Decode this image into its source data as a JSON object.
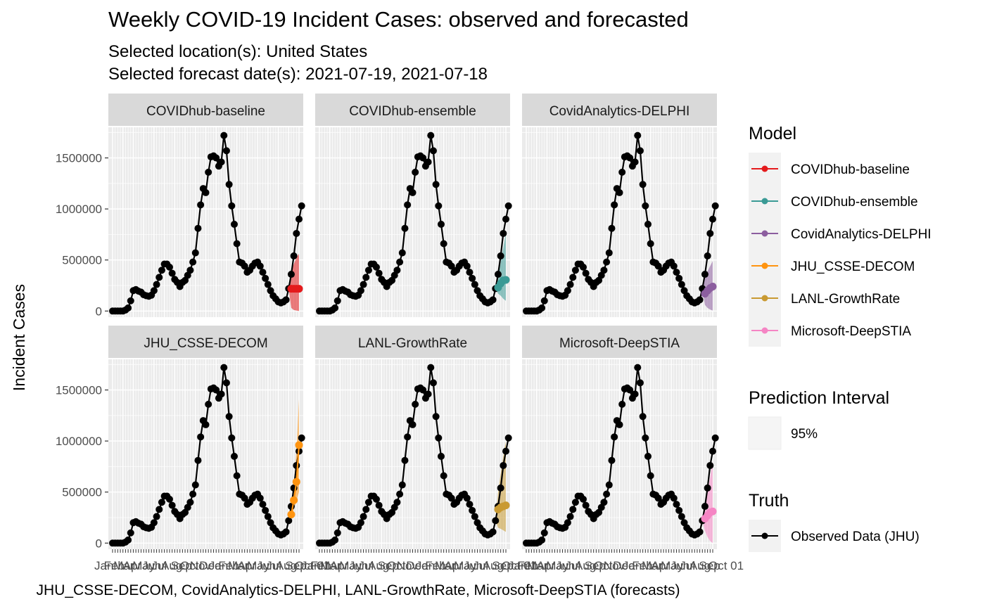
{
  "title": "Weekly COVID-19 Incident Cases: observed and forecasted",
  "subtitle": [
    "Selected location(s): United States",
    "Selected forecast date(s): 2021-07-19, 2021-07-18"
  ],
  "chart_data": {
    "type": "line",
    "title": "Weekly COVID-19 Incident Cases: observed and forecasted",
    "ylabel": "Incident Cases",
    "xlabel": "JHU_CSSE-DECOM, CovidAnalytics-DELPHI, LANL-GrowthRate, Microsoft-DeepSTIA (forecasts)",
    "ylim": [
      -60000,
      1800000
    ],
    "y_ticks": [
      0,
      500000,
      1000000,
      1500000
    ],
    "y_tick_labels": [
      "0",
      "500000",
      "1000000",
      "1500000"
    ],
    "x_tick_labels": [
      "Jan",
      "Feb",
      "Mar",
      "Apr",
      "May",
      "Jun",
      "Jul",
      "Aug",
      "Sep",
      "Oct",
      "Nov",
      "Dec",
      "Jan",
      "Feb",
      "Mar",
      "Apr",
      "May",
      "Jun",
      "Jul",
      "Aug",
      "Sep",
      "Oct 01"
    ],
    "grid": true,
    "panel_layout": "2x3 facet grid",
    "legend_position": "right",
    "truth": {
      "name": "Observed Data (JHU)",
      "color": "#000000",
      "values": [
        0,
        0,
        0,
        0,
        0,
        10000,
        30000,
        100000,
        200000,
        210000,
        195000,
        185000,
        160000,
        150000,
        145000,
        155000,
        200000,
        260000,
        330000,
        400000,
        460000,
        460000,
        430000,
        370000,
        310000,
        280000,
        240000,
        280000,
        300000,
        350000,
        400000,
        480000,
        570000,
        810000,
        1040000,
        1200000,
        1160000,
        1360000,
        1510000,
        1520000,
        1500000,
        1420000,
        1460000,
        1720000,
        1570000,
        1240000,
        1030000,
        850000,
        660000,
        480000,
        470000,
        440000,
        380000,
        400000,
        440000,
        470000,
        480000,
        440000,
        380000,
        320000,
        260000,
        200000,
        150000,
        120000,
        90000,
        80000,
        90000,
        110000,
        220000,
        360000,
        540000,
        760000,
        900000,
        1030000
      ]
    },
    "forecast_start_week": 69,
    "forecast_weeks": [
      69,
      70,
      71,
      72
    ],
    "series": [
      {
        "name": "COVIDhub-baseline",
        "color": "#E41A1C",
        "median": [
          218000,
          218000,
          218000,
          218000
        ],
        "lower": [
          30000,
          10000,
          5000,
          0
        ],
        "upper": [
          400000,
          460000,
          520000,
          560000
        ]
      },
      {
        "name": "COVIDhub-ensemble",
        "color": "#3A9A95",
        "median": [
          230000,
          270000,
          300000,
          305000
        ],
        "lower": [
          170000,
          150000,
          120000,
          100000
        ],
        "upper": [
          330000,
          480000,
          620000,
          760000
        ]
      },
      {
        "name": "CovidAnalytics-DELPHI",
        "color": "#8C5E9F",
        "median": [
          170000,
          200000,
          225000,
          240000
        ],
        "lower": [
          60000,
          30000,
          15000,
          5000
        ],
        "upper": [
          330000,
          390000,
          440000,
          490000
        ]
      },
      {
        "name": "JHU_CSSE-DECOM",
        "color": "#FF9410",
        "median": [
          280000,
          420000,
          600000,
          960000
        ],
        "lower": [
          250000,
          330000,
          420000,
          500000
        ],
        "upper": [
          380000,
          560000,
          900000,
          1410000
        ]
      },
      {
        "name": "LANL-GrowthRate",
        "color": "#C99A32",
        "median": [
          330000,
          350000,
          360000,
          370000
        ],
        "lower": [
          150000,
          140000,
          125000,
          110000
        ],
        "upper": [
          500000,
          680000,
          850000,
          1000000
        ]
      },
      {
        "name": "Microsoft-DeepSTIA",
        "color": "#F585C4",
        "median": [
          240000,
          270000,
          300000,
          310000
        ],
        "lower": [
          120000,
          60000,
          20000,
          0
        ],
        "upper": [
          360000,
          500000,
          640000,
          800000
        ]
      }
    ]
  },
  "legend": {
    "model_title": "Model",
    "model_items": [
      "COVIDhub-baseline",
      "COVIDhub-ensemble",
      "CovidAnalytics-DELPHI",
      "JHU_CSSE-DECOM",
      "LANL-GrowthRate",
      "Microsoft-DeepSTIA"
    ],
    "interval_title": "Prediction Interval",
    "interval_item": "95%",
    "truth_title": "Truth",
    "truth_item": "Observed Data (JHU)"
  }
}
